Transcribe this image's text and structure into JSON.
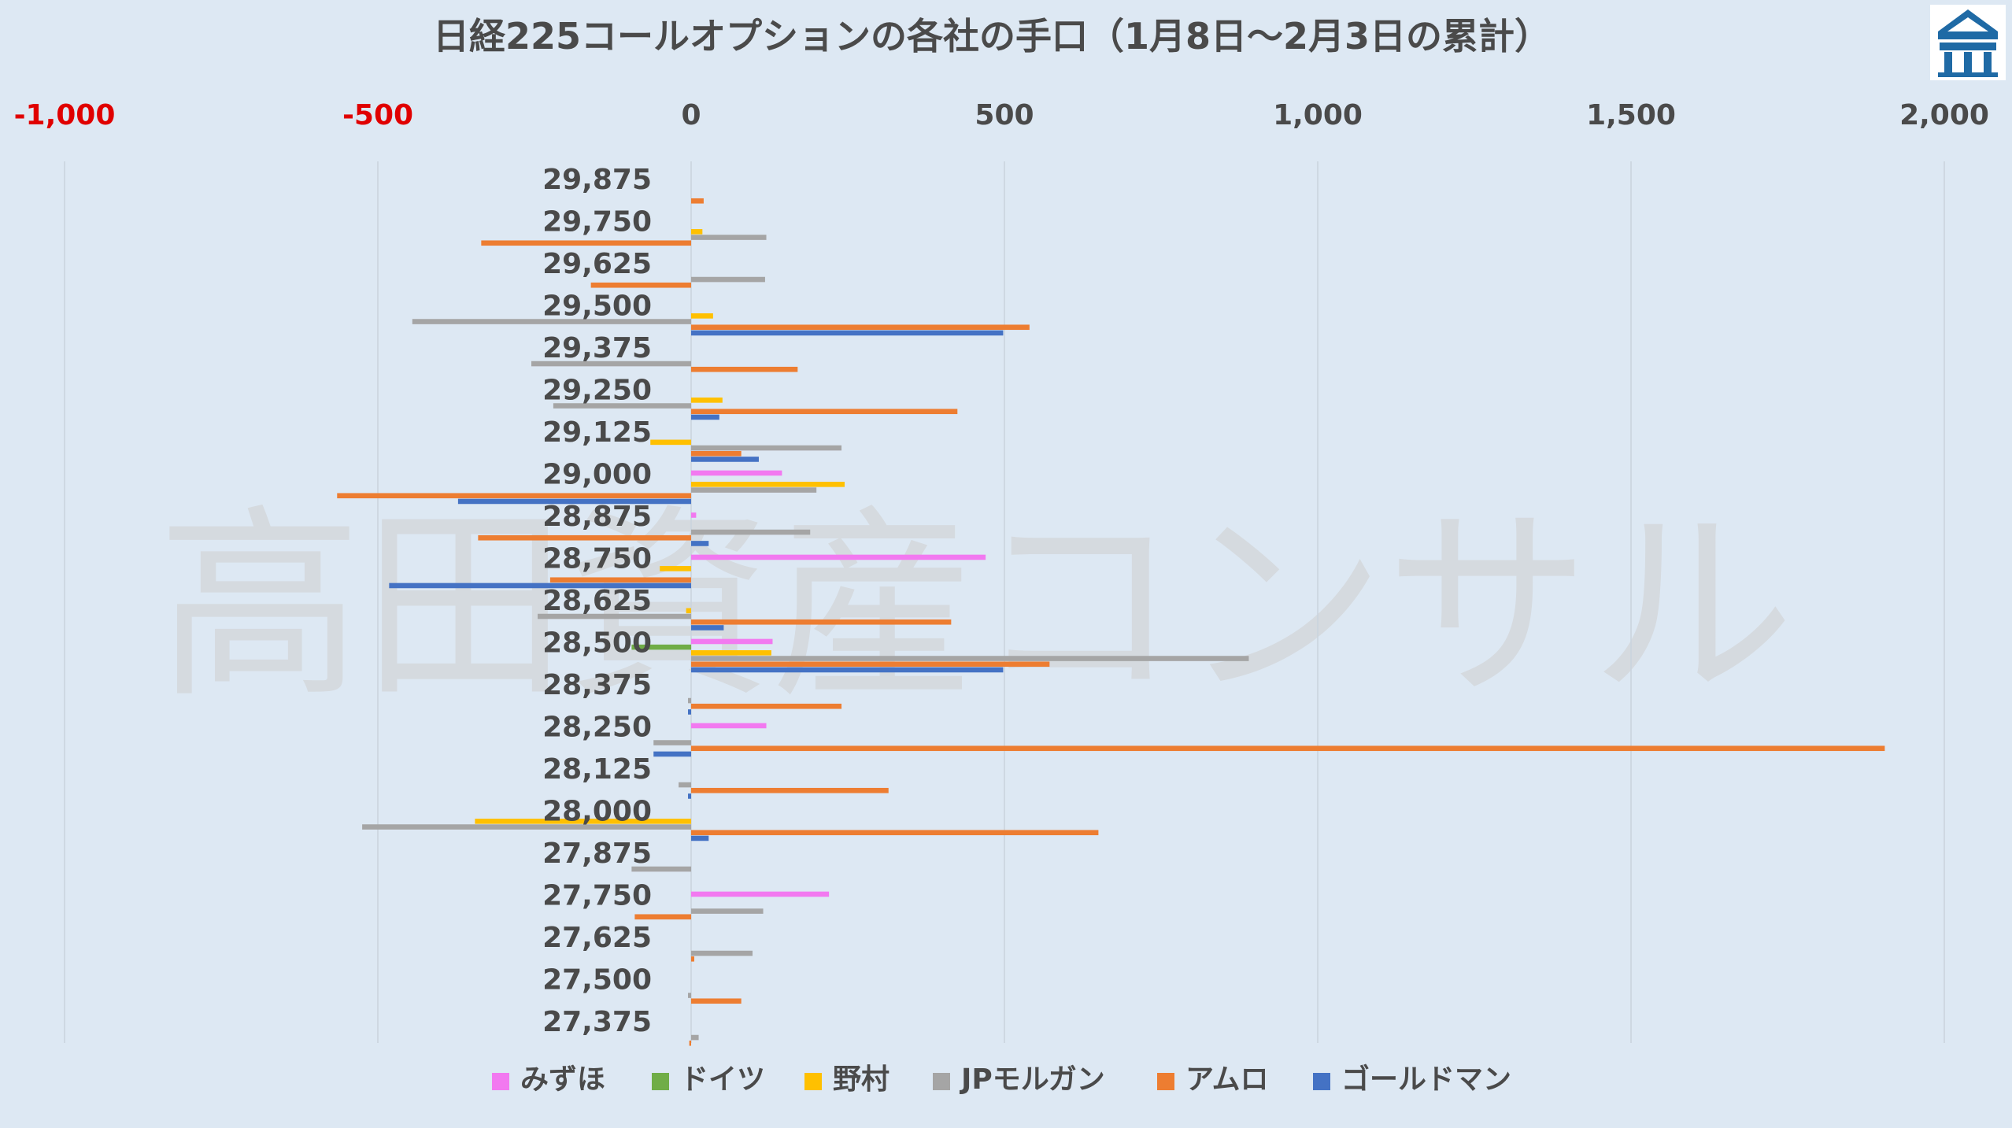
{
  "watermark": "高田資産コンサル",
  "logo": {
    "name": "building-logo-icon",
    "color": "#1f6aa5"
  },
  "chart_data": {
    "type": "bar",
    "orientation": "horizontal",
    "title": "日経225コールオプションの各社の手口（1月8日～2月3日の累計）",
    "xlim": [
      -1000,
      2000
    ],
    "x_ticks": [
      -1000,
      -500,
      0,
      500,
      1000,
      1500,
      2000
    ],
    "x_tick_labels": [
      "-1,000",
      "-500",
      "0",
      "500",
      "1,000",
      "1,500",
      "2,000"
    ],
    "negative_tick_color": "#e00000",
    "positive_tick_color": "#4a4a4a",
    "grid": true,
    "legend_position": "bottom",
    "categories": [
      "29,875",
      "29,750",
      "29,625",
      "29,500",
      "29,375",
      "29,250",
      "29,125",
      "29,000",
      "28,875",
      "28,750",
      "28,625",
      "28,500",
      "28,375",
      "28,250",
      "28,125",
      "28,000",
      "27,875",
      "27,750",
      "27,625",
      "27,500",
      "27,375"
    ],
    "series": [
      {
        "name": "みずほ",
        "color": "#f279f0",
        "values": [
          0,
          0,
          0,
          0,
          0,
          0,
          0,
          145,
          8,
          470,
          0,
          130,
          0,
          120,
          0,
          0,
          0,
          220,
          0,
          0,
          0
        ]
      },
      {
        "name": "ドイツ",
        "color": "#70ad47",
        "values": [
          0,
          0,
          0,
          0,
          0,
          0,
          0,
          0,
          0,
          0,
          0,
          -95,
          0,
          0,
          0,
          0,
          0,
          0,
          0,
          0,
          0
        ]
      },
      {
        "name": "野村",
        "color": "#ffc000",
        "values": [
          0,
          18,
          0,
          35,
          0,
          50,
          -65,
          245,
          0,
          -50,
          -8,
          128,
          0,
          0,
          0,
          -345,
          0,
          0,
          0,
          0,
          0
        ]
      },
      {
        "name": "JPモルガン",
        "color": "#a5a5a5",
        "values": [
          0,
          120,
          118,
          -445,
          -255,
          -220,
          240,
          200,
          190,
          0,
          -245,
          890,
          -5,
          -60,
          -20,
          -525,
          -95,
          115,
          98,
          -5,
          12
        ]
      },
      {
        "name": "アムロ",
        "color": "#ed7d31",
        "values": [
          20,
          -335,
          -160,
          540,
          170,
          425,
          80,
          -565,
          -340,
          -225,
          415,
          572,
          240,
          1905,
          315,
          650,
          0,
          -90,
          5,
          80,
          -3
        ]
      },
      {
        "name": "ゴールドマン",
        "color": "#4472c4",
        "values": [
          0,
          0,
          0,
          498,
          0,
          45,
          108,
          -372,
          28,
          -482,
          52,
          498,
          -5,
          -60,
          -5,
          28,
          0,
          0,
          0,
          0,
          0
        ]
      }
    ]
  }
}
